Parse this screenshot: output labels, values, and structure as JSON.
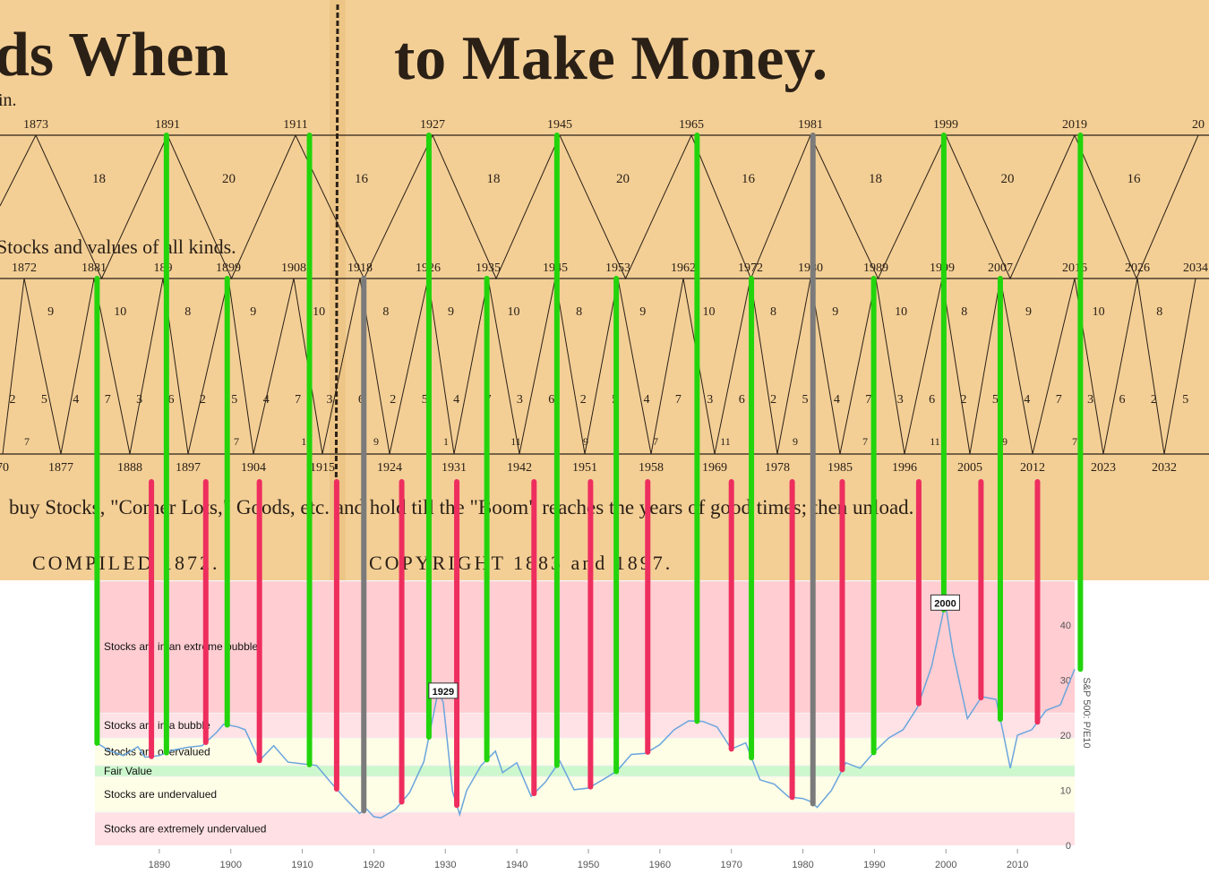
{
  "colors": {
    "paper": "#f3cf96",
    "paper_shade": "#e9c07f",
    "ink": "#2b2016",
    "green": "#22d40c",
    "red": "#ee2e5e",
    "gray": "#7b7b7b",
    "series": "#6aa5dd",
    "band_extreme_bubble": "#ffcdd2",
    "band_bubble": "#ffe2e6",
    "band_overvalued": "#fefde6",
    "band_fair": "#cdf7cd",
    "band_undervalued": "#fefde6",
    "band_extreme_undervalued": "#ffe0e4"
  },
  "poster": {
    "headline_left": "ds When",
    "headline_right": "to Make Money.",
    "subline": "in.",
    "top_peaks": [
      "1873",
      "1891",
      "1911",
      "1927",
      "1945",
      "1965",
      "1981",
      "1999",
      "2019",
      "20"
    ],
    "top_spans": [
      "18",
      "20",
      "16",
      "18",
      "20",
      "16",
      "18",
      "20",
      "16"
    ],
    "mid_label": "Stocks and values of all kinds.",
    "mid_peaks": [
      "1872",
      "1881",
      "189",
      "1899",
      "1908",
      "1918",
      "1926",
      "1935",
      "1945",
      "1953",
      "1962",
      "1972",
      "1980",
      "1989",
      "1999",
      "2007",
      "2016",
      "2026",
      "2034"
    ],
    "mid_spans": [
      "9",
      "10",
      "8",
      "9",
      "10",
      "8",
      "9",
      "10",
      "8",
      "9",
      "10",
      "8",
      "9",
      "10",
      "8",
      "9",
      "10",
      "8"
    ],
    "low_nums": [
      "2",
      "5",
      "4",
      "7",
      "3",
      "6",
      "2",
      "5",
      "4",
      "7",
      "3",
      "6",
      "2",
      "5",
      "4",
      "7",
      "3",
      "6",
      "2",
      "5",
      "4",
      "7",
      "3",
      "6",
      "2",
      "5",
      "4",
      "7",
      "3",
      "6",
      "2",
      "5",
      "4",
      "7",
      "3",
      "6",
      "2",
      "5"
    ],
    "troughs": [
      "70",
      "1877",
      "1888",
      "1897",
      "1904",
      "1915",
      "1924",
      "1931",
      "1942",
      "1951",
      "1958",
      "1969",
      "1978",
      "1985",
      "1996",
      "2005",
      "2012",
      "2023",
      "2032"
    ],
    "trough_counts": [
      "7",
      "1",
      "9",
      "7",
      "11",
      "9",
      "1",
      "11",
      "9",
      "7",
      "11",
      "9",
      "7",
      "11",
      "9",
      "7"
    ],
    "instruction": "buy Stocks, \"Corner Lots,\" Goods, etc. and hold till the \"Boom\" reaches the years of good times; then unload.",
    "compiled": "COMPILED 1872.",
    "copyright": "COPYRIGHT 1883 and 1897."
  },
  "chart_data": {
    "type": "line",
    "title": "",
    "xlabel": "",
    "ylabel": "S&P 500: P/E10",
    "xlim": [
      1881,
      2018
    ],
    "ylim": [
      0,
      42
    ],
    "x_ticks": [
      1890,
      1900,
      1910,
      1920,
      1930,
      1940,
      1950,
      1960,
      1970,
      1980,
      1990,
      2000,
      2010
    ],
    "y_ticks": [
      0,
      10,
      20,
      30,
      40
    ],
    "bands": [
      {
        "label": "Stocks are in an extreme bubble",
        "from": 24,
        "to": 48
      },
      {
        "label": "Stocks are in a bubble",
        "from": 19.5,
        "to": 24
      },
      {
        "label": "Stocks are overvalued",
        "from": 14.5,
        "to": 19.5
      },
      {
        "label": "Fair Value",
        "from": 12.5,
        "to": 14.5
      },
      {
        "label": "Stocks are undervalued",
        "from": 6,
        "to": 12.5
      },
      {
        "label": "Stocks are extremely undervalued",
        "from": 0,
        "to": 6
      }
    ],
    "annotations": [
      {
        "label": "1929",
        "x": 1929.7,
        "y": 28
      },
      {
        "label": "2000",
        "x": 1999.9,
        "y": 44
      }
    ],
    "series": [
      {
        "x": [
          1881,
          1883,
          1885,
          1887,
          1888,
          1890,
          1892,
          1894,
          1896,
          1898,
          1899,
          1901,
          1902,
          1904,
          1906,
          1908,
          1910,
          1912,
          1914,
          1916,
          1918,
          1919,
          1920,
          1921,
          1923,
          1925,
          1927,
          1929,
          1929.7,
          1931,
          1932,
          1933,
          1935,
          1937,
          1938,
          1940,
          1942,
          1944,
          1946,
          1948,
          1950,
          1952,
          1954,
          1956,
          1958,
          1960,
          1962,
          1964,
          1966,
          1968,
          1970,
          1972,
          1974,
          1976,
          1978,
          1980,
          1981,
          1982,
          1984,
          1986,
          1988,
          1990,
          1992,
          1994,
          1996,
          1998,
          1999.9,
          2001,
          2003,
          2005,
          2007,
          2008,
          2009,
          2010,
          2012,
          2014,
          2016,
          2018
        ],
        "y": [
          18.8,
          17.2,
          16.3,
          17.9,
          16.0,
          16.3,
          17.3,
          17.8,
          18.1,
          20.5,
          22.0,
          21.5,
          21.0,
          15.4,
          18.1,
          15.1,
          14.8,
          14.5,
          11.4,
          8.5,
          5.8,
          6.6,
          5.2,
          5.0,
          6.5,
          9.6,
          15.2,
          28.0,
          26.0,
          9.8,
          5.6,
          10.0,
          14.5,
          17.1,
          13.2,
          15.0,
          8.9,
          11.5,
          15.3,
          10.1,
          10.4,
          11.9,
          13.5,
          16.5,
          16.7,
          18.3,
          21.0,
          22.6,
          22.5,
          21.5,
          17.5,
          18.6,
          11.9,
          11.1,
          8.8,
          8.5,
          8.0,
          6.9,
          10.0,
          15.0,
          14.0,
          17.0,
          19.5,
          21.0,
          25.0,
          32.5,
          44.0,
          35.0,
          23.0,
          27.0,
          26.5,
          20.5,
          14.0,
          20.0,
          21.0,
          24.5,
          25.5,
          32.0
        ]
      }
    ],
    "vertical_markers": [
      {
        "x": 1881.3,
        "kind": "peak",
        "top_row": "mid"
      },
      {
        "x": 1888.9,
        "kind": "trough"
      },
      {
        "x": 1891.0,
        "kind": "peak",
        "top_row": "top"
      },
      {
        "x": 1896.5,
        "kind": "trough"
      },
      {
        "x": 1899.5,
        "kind": "peak",
        "top_row": "mid"
      },
      {
        "x": 1904.0,
        "kind": "trough"
      },
      {
        "x": 1911.0,
        "kind": "peak",
        "top_row": "top"
      },
      {
        "x": 1914.8,
        "kind": "trough"
      },
      {
        "x": 1918.6,
        "kind": "cycle",
        "top_row": "mid"
      },
      {
        "x": 1923.9,
        "kind": "trough"
      },
      {
        "x": 1927.7,
        "kind": "peak",
        "top_row": "top"
      },
      {
        "x": 1931.6,
        "kind": "trough"
      },
      {
        "x": 1935.8,
        "kind": "peak",
        "top_row": "mid"
      },
      {
        "x": 1942.4,
        "kind": "trough"
      },
      {
        "x": 1945.6,
        "kind": "peak",
        "top_row": "top"
      },
      {
        "x": 1950.3,
        "kind": "trough"
      },
      {
        "x": 1953.9,
        "kind": "peak",
        "top_row": "mid"
      },
      {
        "x": 1958.3,
        "kind": "trough"
      },
      {
        "x": 1965.2,
        "kind": "peak",
        "top_row": "top"
      },
      {
        "x": 1970.0,
        "kind": "trough"
      },
      {
        "x": 1972.8,
        "kind": "peak",
        "top_row": "mid"
      },
      {
        "x": 1978.5,
        "kind": "trough"
      },
      {
        "x": 1981.4,
        "kind": "cycle",
        "top_row": "top"
      },
      {
        "x": 1985.5,
        "kind": "trough"
      },
      {
        "x": 1989.9,
        "kind": "peak",
        "top_row": "mid"
      },
      {
        "x": 1996.2,
        "kind": "trough"
      },
      {
        "x": 1999.7,
        "kind": "peak",
        "top_row": "top"
      },
      {
        "x": 2004.9,
        "kind": "trough"
      },
      {
        "x": 2007.6,
        "kind": "peak",
        "top_row": "mid"
      },
      {
        "x": 2012.8,
        "kind": "trough"
      },
      {
        "x": 2018.8,
        "kind": "peak",
        "top_row": "top"
      }
    ]
  }
}
